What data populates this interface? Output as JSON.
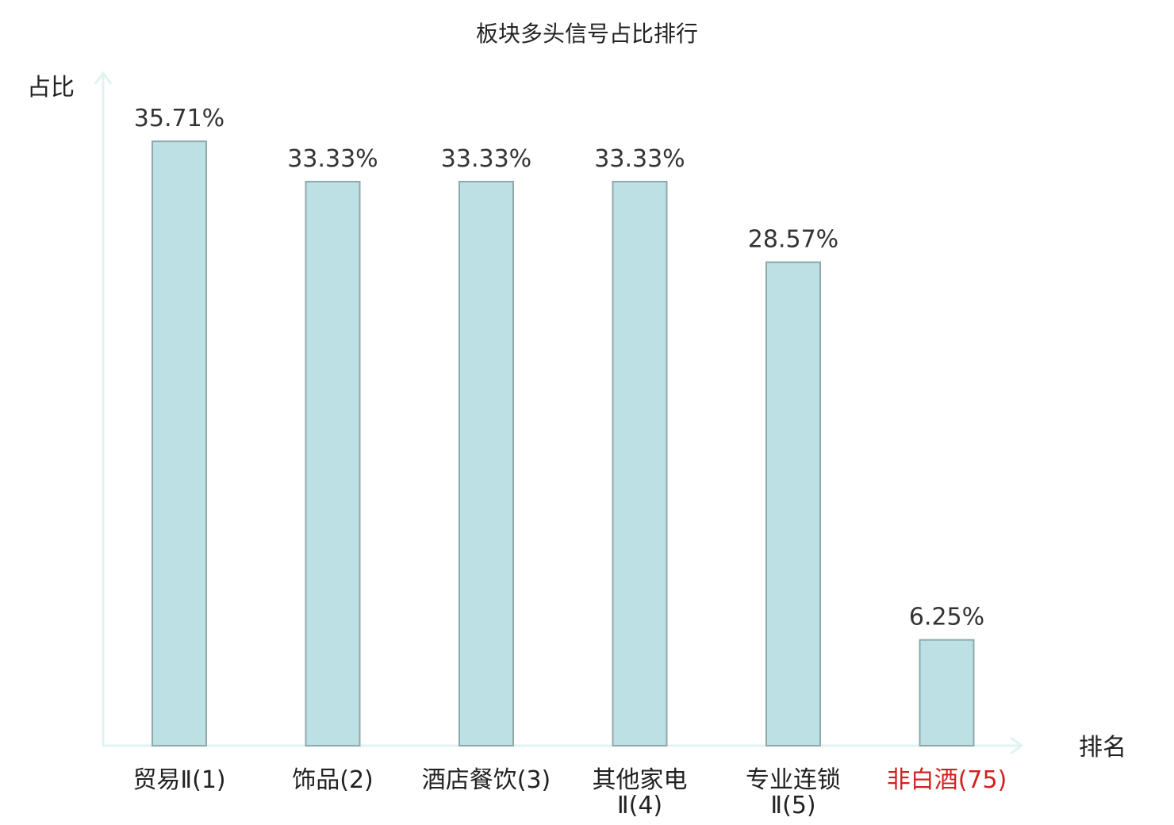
{
  "chart_data": {
    "type": "bar",
    "title": "板块多头信号占比排行",
    "ylabel": "占比",
    "xlabel": "排名",
    "categories": [
      {
        "name": "贸易Ⅱ",
        "rank": "(1)",
        "lines": [
          "贸易Ⅱ(1)"
        ],
        "highlight": false
      },
      {
        "name": "饰品",
        "rank": "(2)",
        "lines": [
          "饰品(2)"
        ],
        "highlight": false
      },
      {
        "name": "酒店餐饮",
        "rank": "(3)",
        "lines": [
          "酒店餐饮(3)"
        ],
        "highlight": false
      },
      {
        "name": "其他家电Ⅱ",
        "rank": "(4)",
        "lines": [
          "其他家电",
          "Ⅱ(4)"
        ],
        "highlight": false
      },
      {
        "name": "专业连锁Ⅱ",
        "rank": "(5)",
        "lines": [
          "专业连锁",
          "Ⅱ(5)"
        ],
        "highlight": false
      },
      {
        "name": "非白酒",
        "rank": "(75)",
        "lines": [
          "非白酒(75)"
        ],
        "highlight": true
      }
    ],
    "values": [
      35.71,
      33.33,
      33.33,
      33.33,
      28.57,
      6.25
    ],
    "value_labels": [
      "35.71%",
      "33.33%",
      "33.33%",
      "33.33%",
      "28.57%",
      "6.25%"
    ],
    "ylim": [
      0,
      37.5
    ],
    "grid": false,
    "legend": false
  },
  "colors": {
    "bar_fill": "#bce0e3",
    "bar_stroke": "#8fa9ab",
    "axis": "#e0f3f1",
    "text": "#222222",
    "highlight": "#d42020"
  }
}
